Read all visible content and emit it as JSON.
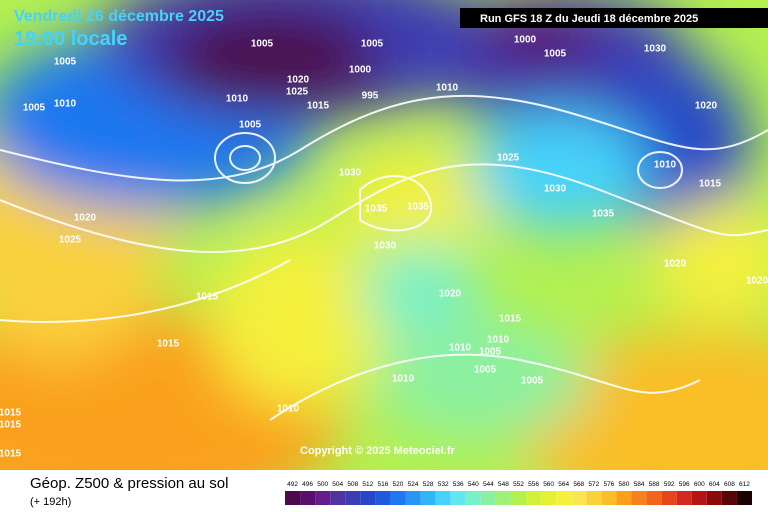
{
  "header": {
    "date": "Vendredi 26 décembre 2025",
    "time": "19:00 locale",
    "run": "Run GFS 18 Z du Jeudi 18 décembre 2025"
  },
  "copyright": "Copyright © 2025 Meteociel.fr",
  "footer": {
    "title": "Géop. Z500 & pression au sol",
    "lead": "(+ 192h)"
  },
  "isobar_labels": [
    "1005",
    "1005",
    "1000",
    "995",
    "1020",
    "1025",
    "1015",
    "1010",
    "1005",
    "1010",
    "1005",
    "1005",
    "1010",
    "1000",
    "1005",
    "1030",
    "1020",
    "1010",
    "1015",
    "1025",
    "1030",
    "1035",
    "1035",
    "1030",
    "1030",
    "1035",
    "1020",
    "1025",
    "1020",
    "1020",
    "1015",
    "1015",
    "1015",
    "1010",
    "1010",
    "1005",
    "1005",
    "1005",
    "1010",
    "1010",
    "1015",
    "1015",
    "1015",
    "1020"
  ],
  "scale": {
    "labels": [
      492,
      496,
      500,
      504,
      508,
      512,
      516,
      520,
      524,
      528,
      532,
      536,
      540,
      544,
      548,
      552,
      556,
      560,
      564,
      568,
      572,
      576,
      580,
      584,
      588,
      592,
      596,
      600,
      604,
      608,
      612
    ],
    "colors": [
      "#4b0a4b",
      "#5a0f6a",
      "#641e8c",
      "#5032a0",
      "#3c3cb4",
      "#2846c8",
      "#1e5adc",
      "#1e78f0",
      "#2896f5",
      "#32b4fa",
      "#46d2fa",
      "#64e6f0",
      "#78f0c8",
      "#8cf0a0",
      "#a0f078",
      "#b4f050",
      "#d2f03c",
      "#e6f032",
      "#f5f03c",
      "#fae650",
      "#fad23c",
      "#fabe28",
      "#faa01e",
      "#f5821e",
      "#f0641e",
      "#e6461e",
      "#d2281e",
      "#b41414",
      "#8c0a0a",
      "#5a0505",
      "#1e0000"
    ]
  }
}
